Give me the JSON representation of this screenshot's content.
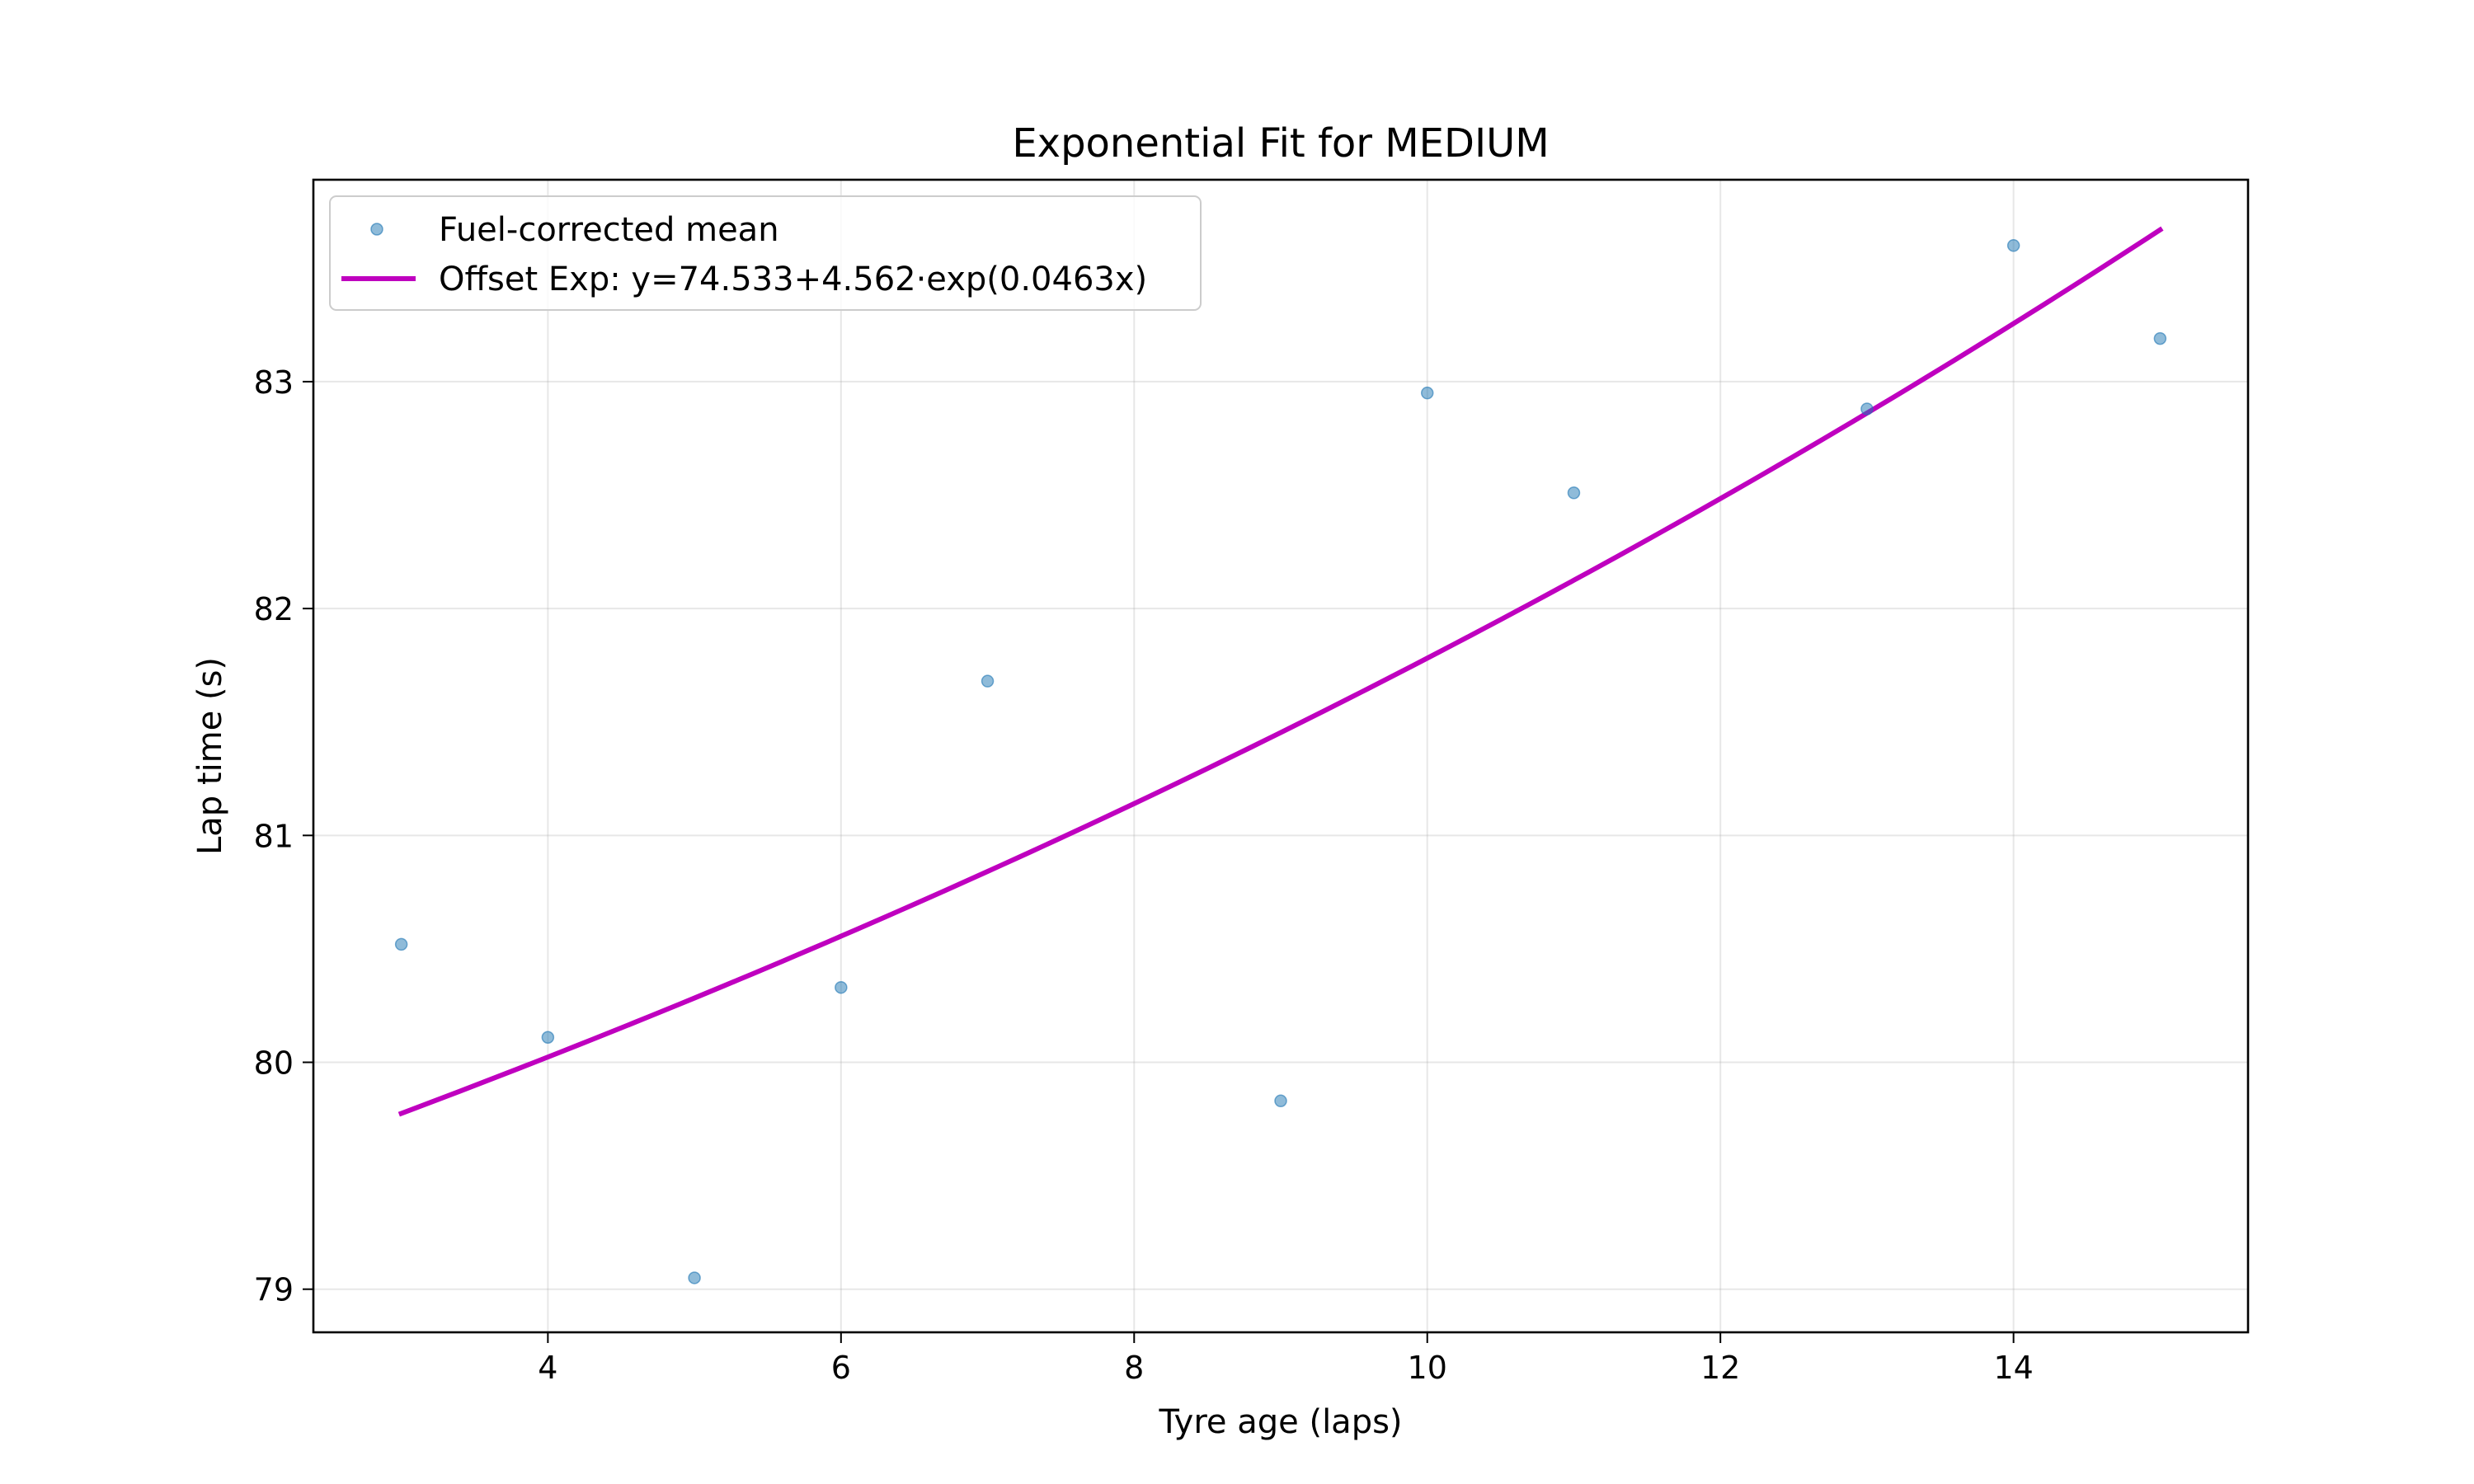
{
  "chart_data": {
    "type": "scatter",
    "title": "Exponential Fit for MEDIUM",
    "xlabel": "Tyre age (laps)",
    "ylabel": "Lap time (s)",
    "xlim": [
      2.4,
      15.6
    ],
    "ylim": [
      78.81,
      83.89
    ],
    "xticks": [
      4,
      6,
      8,
      10,
      12,
      14
    ],
    "yticks": [
      79,
      80,
      81,
      82,
      83
    ],
    "grid": true,
    "legend_position": "top-left",
    "series": [
      {
        "name": "Fuel-corrected mean",
        "kind": "scatter",
        "color": "#1f77b4",
        "x": [
          3,
          4,
          5,
          6,
          7,
          9,
          10,
          11,
          13,
          14,
          15
        ],
        "y": [
          80.52,
          80.11,
          79.05,
          80.33,
          81.68,
          79.83,
          82.95,
          82.51,
          82.88,
          83.6,
          83.19
        ]
      },
      {
        "name": "Offset Exp: y=74.533+4.562·exp(0.0463x)",
        "kind": "line",
        "color": "#bf00bf",
        "model": {
          "a": 74.533,
          "b": 4.562,
          "c": 0.0463
        },
        "x_range": [
          3,
          15
        ]
      }
    ]
  }
}
